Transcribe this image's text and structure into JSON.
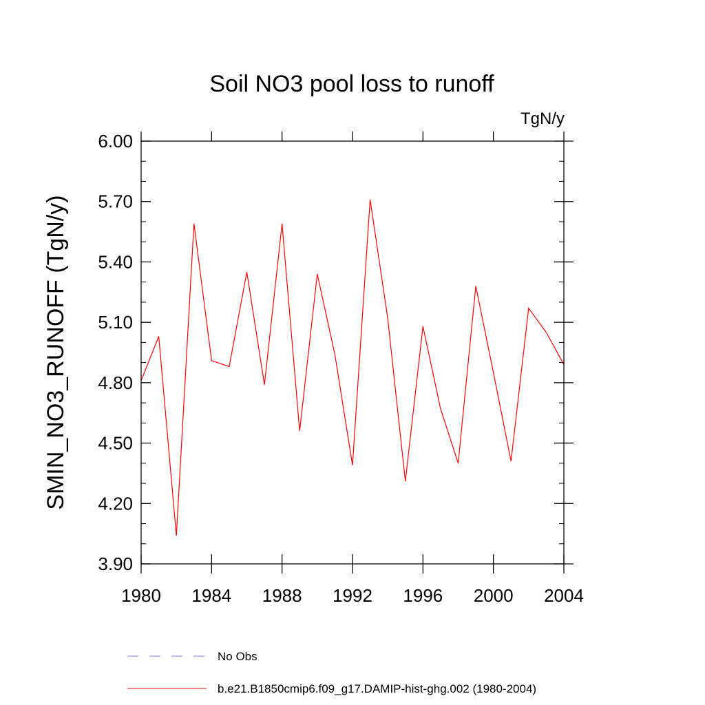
{
  "chart_data": {
    "type": "line",
    "title": "Soil NO3 pool loss to runoff",
    "units_label": "TgN/y",
    "ylabel": "SMIN_NO3_RUNOFF  (TgN/y)",
    "xlabel": "",
    "xlim": [
      1980,
      2004
    ],
    "ylim": [
      3.9,
      6.0
    ],
    "x_ticks": [
      "1980",
      "1984",
      "1988",
      "1992",
      "1996",
      "2000",
      "2004"
    ],
    "y_ticks": [
      "3.90",
      "4.20",
      "4.50",
      "4.80",
      "5.10",
      "5.40",
      "5.70",
      "6.00"
    ],
    "x": [
      1980,
      1981,
      1982,
      1983,
      1984,
      1985,
      1986,
      1987,
      1988,
      1989,
      1990,
      1991,
      1992,
      1993,
      1994,
      1995,
      1996,
      1997,
      1998,
      1999,
      2000,
      2001,
      2002,
      2003,
      2004
    ],
    "series": [
      {
        "name": "b.e21.B1850cmip6.f09_g17.DAMIP-hist-ghg.002 (1980-2004)",
        "color": "#ff0000",
        "values": [
          4.81,
          5.03,
          4.04,
          5.59,
          4.91,
          4.88,
          5.35,
          4.79,
          5.59,
          4.56,
          5.34,
          4.94,
          4.39,
          5.71,
          5.12,
          4.31,
          5.08,
          4.67,
          4.4,
          5.28,
          4.85,
          4.41,
          5.17,
          5.05,
          4.89
        ]
      }
    ],
    "legend": {
      "placement": "bottom",
      "entries": [
        {
          "label": "No Obs",
          "style": "dashed",
          "color": "#7b7bd6"
        },
        {
          "label": "b.e21.B1850cmip6.f09_g17.DAMIP-hist-ghg.002 (1980-2004)",
          "style": "solid",
          "color": "#ff0000"
        }
      ]
    },
    "grid": false
  }
}
